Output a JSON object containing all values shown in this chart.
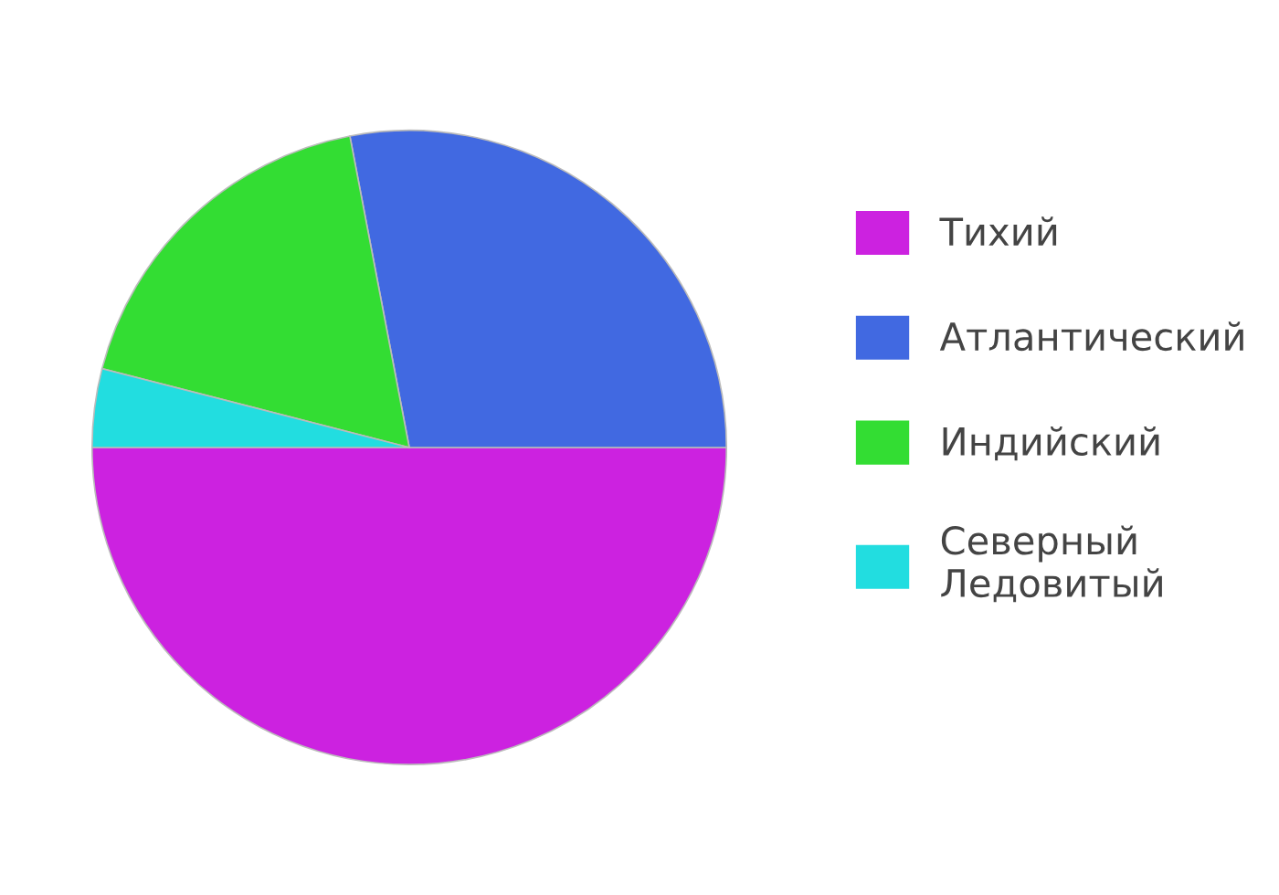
{
  "chart_data": {
    "type": "pie",
    "categories": [
      "Тихий",
      "Атлантический",
      "Индийский",
      "Северный Ледовитый"
    ],
    "values": [
      50,
      28,
      18,
      4
    ],
    "colors": [
      "#cc22e0",
      "#4169e1",
      "#33dd33",
      "#22dde0"
    ],
    "legend": "right"
  }
}
